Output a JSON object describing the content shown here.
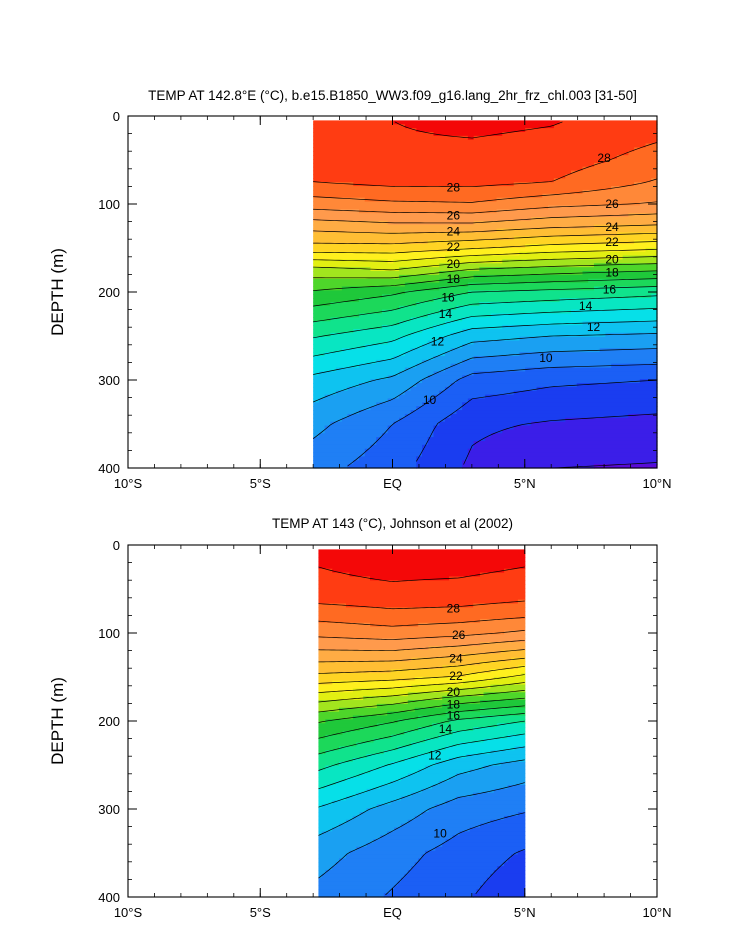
{
  "chart_data": [
    {
      "type": "heatmap",
      "subtype": "filled-contour",
      "title": "TEMP AT 142.8°E (°C), b.e15.B1850_WW3.f09_g16.lang_2hr_frz_chl.003 [31-50]",
      "ylabel": "DEPTH (m)",
      "xlabel": "",
      "xlim": [
        -10,
        10
      ],
      "ylim": [
        400,
        0
      ],
      "y_reversed": true,
      "x_tick_values": [
        -10,
        -5,
        0,
        5,
        10
      ],
      "x_tick_labels": [
        "10°S",
        "5°S",
        "EQ",
        "5°N",
        "10°N"
      ],
      "y_tick_values": [
        0,
        100,
        200,
        300,
        400
      ],
      "y_tick_labels": [
        "0",
        "100",
        "200",
        "300",
        "400"
      ],
      "data_extent_lat": [
        -3,
        10
      ],
      "data_extent_depth": [
        5,
        400
      ],
      "contour_interval": 1,
      "contour_levels": [
        7,
        8,
        9,
        10,
        11,
        12,
        13,
        14,
        15,
        16,
        17,
        18,
        19,
        20,
        21,
        22,
        23,
        24,
        25,
        26,
        27,
        28,
        29
      ],
      "labeled_contours": [
        {
          "level": 28,
          "lat": 8.0,
          "depth": 48,
          "text": "28"
        },
        {
          "level": 28,
          "lat": 2.3,
          "depth": 81,
          "text": "28"
        },
        {
          "level": 26,
          "lat": 2.3,
          "depth": 113,
          "text": "26"
        },
        {
          "level": 26,
          "lat": 8.3,
          "depth": 100,
          "text": "26"
        },
        {
          "level": 24,
          "lat": 2.3,
          "depth": 131,
          "text": "24"
        },
        {
          "level": 24,
          "lat": 8.3,
          "depth": 126,
          "text": "24"
        },
        {
          "level": 22,
          "lat": 2.3,
          "depth": 149,
          "text": "22"
        },
        {
          "level": 22,
          "lat": 8.3,
          "depth": 143,
          "text": "22"
        },
        {
          "level": 20,
          "lat": 2.3,
          "depth": 168,
          "text": "20"
        },
        {
          "level": 20,
          "lat": 8.3,
          "depth": 163,
          "text": "20"
        },
        {
          "level": 18,
          "lat": 2.3,
          "depth": 185,
          "text": "18"
        },
        {
          "level": 18,
          "lat": 8.3,
          "depth": 178,
          "text": "18"
        },
        {
          "level": 16,
          "lat": 2.1,
          "depth": 206,
          "text": "16"
        },
        {
          "level": 16,
          "lat": 8.2,
          "depth": 197,
          "text": "16"
        },
        {
          "level": 14,
          "lat": 2.0,
          "depth": 225,
          "text": "14"
        },
        {
          "level": 14,
          "lat": 7.3,
          "depth": 216,
          "text": "14"
        },
        {
          "level": 12,
          "lat": 1.7,
          "depth": 256,
          "text": "12"
        },
        {
          "level": 12,
          "lat": 7.6,
          "depth": 240,
          "text": "12"
        },
        {
          "level": 10,
          "lat": 1.4,
          "depth": 323,
          "text": "10"
        },
        {
          "level": 10,
          "lat": 5.8,
          "depth": 275,
          "text": "10"
        }
      ],
      "rows": [
        {
          "depth": 5,
          "lat": [
            -3,
            0,
            3,
            6,
            10
          ],
          "temp": [
            28.9,
            29.0,
            29.3,
            29.1,
            28.4
          ]
        },
        {
          "depth": 25,
          "lat": [
            -3,
            0,
            3,
            6,
            10
          ],
          "temp": [
            28.8,
            28.9,
            29.0,
            28.8,
            28.1
          ]
        },
        {
          "depth": 50,
          "lat": [
            -3,
            0,
            3,
            6,
            10
          ],
          "temp": [
            28.6,
            28.7,
            28.8,
            28.5,
            27.6
          ]
        },
        {
          "depth": 75,
          "lat": [
            -3,
            0,
            3,
            6,
            10
          ],
          "temp": [
            28.0,
            28.3,
            28.3,
            28.0,
            26.9
          ]
        },
        {
          "depth": 100,
          "lat": [
            -3,
            0,
            3,
            6,
            10
          ],
          "temp": [
            26.5,
            26.8,
            26.9,
            26.3,
            25.9
          ]
        },
        {
          "depth": 125,
          "lat": [
            -3,
            0,
            3,
            6,
            10
          ],
          "temp": [
            24.4,
            24.7,
            24.7,
            24.2,
            23.9
          ]
        },
        {
          "depth": 150,
          "lat": [
            -3,
            0,
            3,
            6,
            10
          ],
          "temp": [
            22.6,
            22.6,
            22.1,
            21.6,
            21.2
          ]
        },
        {
          "depth": 175,
          "lat": [
            -3,
            0,
            3,
            6,
            10
          ],
          "temp": [
            19.6,
            20.0,
            18.9,
            18.5,
            18.1
          ]
        },
        {
          "depth": 200,
          "lat": [
            -3,
            0,
            3,
            6,
            10
          ],
          "temp": [
            17.9,
            17.2,
            16.0,
            15.7,
            15.3
          ]
        },
        {
          "depth": 250,
          "lat": [
            -3,
            0,
            3,
            6,
            10
          ],
          "temp": [
            15.1,
            14.3,
            12.4,
            12.0,
            11.8
          ]
        },
        {
          "depth": 300,
          "lat": [
            -3,
            0,
            3,
            6,
            10
          ],
          "temp": [
            12.7,
            11.8,
            9.6,
            9.2,
            9.0
          ]
        },
        {
          "depth": 350,
          "lat": [
            -3,
            0,
            3,
            6,
            10
          ],
          "temp": [
            11.3,
            10.0,
            8.2,
            7.9,
            7.7
          ]
        },
        {
          "depth": 400,
          "lat": [
            -3,
            0,
            3,
            6,
            10
          ],
          "temp": [
            10.4,
            9.4,
            7.8,
            7.0,
            6.9
          ]
        }
      ]
    },
    {
      "type": "heatmap",
      "subtype": "filled-contour",
      "title": "TEMP AT 143 (°C), Johnson et al (2002)",
      "ylabel": "DEPTH (m)",
      "xlabel": "",
      "xlim": [
        -10,
        10
      ],
      "ylim": [
        400,
        0
      ],
      "y_reversed": true,
      "x_tick_values": [
        -10,
        -5,
        0,
        5,
        10
      ],
      "x_tick_labels": [
        "10°S",
        "5°S",
        "EQ",
        "5°N",
        "10°N"
      ],
      "y_tick_values": [
        0,
        100,
        200,
        300,
        400
      ],
      "y_tick_labels": [
        "0",
        "100",
        "200",
        "300",
        "400"
      ],
      "data_extent_lat": [
        -2.8,
        5
      ],
      "data_extent_depth": [
        5,
        400
      ],
      "contour_interval": 1,
      "contour_levels": [
        8,
        9,
        10,
        11,
        12,
        13,
        14,
        15,
        16,
        17,
        18,
        19,
        20,
        21,
        22,
        23,
        24,
        25,
        26,
        27,
        28,
        29
      ],
      "labeled_contours": [
        {
          "level": 28,
          "lat": 2.3,
          "depth": 72,
          "text": "28"
        },
        {
          "level": 26,
          "lat": 2.5,
          "depth": 102,
          "text": "26"
        },
        {
          "level": 24,
          "lat": 2.4,
          "depth": 129,
          "text": "24"
        },
        {
          "level": 22,
          "lat": 2.4,
          "depth": 149,
          "text": "22"
        },
        {
          "level": 20,
          "lat": 2.3,
          "depth": 167,
          "text": "20"
        },
        {
          "level": 18,
          "lat": 2.3,
          "depth": 181,
          "text": "18"
        },
        {
          "level": 16,
          "lat": 2.3,
          "depth": 194,
          "text": "16"
        },
        {
          "level": 14,
          "lat": 2.0,
          "depth": 209,
          "text": "14"
        },
        {
          "level": 12,
          "lat": 1.6,
          "depth": 239,
          "text": "12"
        },
        {
          "level": 10,
          "lat": 1.8,
          "depth": 328,
          "text": "10"
        }
      ],
      "rows": [
        {
          "depth": 5,
          "lat": [
            -2.8,
            0,
            2.5,
            5
          ],
          "temp": [
            29.1,
            29.3,
            29.4,
            29.2
          ]
        },
        {
          "depth": 25,
          "lat": [
            -2.8,
            0,
            2.5,
            5
          ],
          "temp": [
            29.0,
            29.2,
            29.2,
            29.0
          ]
        },
        {
          "depth": 50,
          "lat": [
            -2.8,
            0,
            2.5,
            5
          ],
          "temp": [
            28.8,
            28.9,
            28.8,
            28.6
          ]
        },
        {
          "depth": 75,
          "lat": [
            -2.8,
            0,
            2.5,
            5
          ],
          "temp": [
            27.6,
            27.9,
            27.8,
            27.5
          ]
        },
        {
          "depth": 100,
          "lat": [
            -2.8,
            0,
            2.5,
            5
          ],
          "temp": [
            26.3,
            26.6,
            26.3,
            25.8
          ]
        },
        {
          "depth": 125,
          "lat": [
            -2.8,
            0,
            2.5,
            5
          ],
          "temp": [
            24.6,
            24.6,
            24.1,
            23.4
          ]
        },
        {
          "depth": 150,
          "lat": [
            -2.8,
            0,
            2.5,
            5
          ],
          "temp": [
            22.7,
            22.4,
            21.9,
            20.7
          ]
        },
        {
          "depth": 175,
          "lat": [
            -2.8,
            0,
            2.5,
            5
          ],
          "temp": [
            20.3,
            19.6,
            18.6,
            17.9
          ]
        },
        {
          "depth": 200,
          "lat": [
            -2.8,
            0,
            2.5,
            5
          ],
          "temp": [
            18.1,
            17.1,
            15.8,
            15.0
          ]
        },
        {
          "depth": 250,
          "lat": [
            -2.8,
            0,
            2.5,
            5
          ],
          "temp": [
            15.3,
            13.9,
            12.4,
            11.6
          ]
        },
        {
          "depth": 300,
          "lat": [
            -2.8,
            0,
            2.5,
            5
          ],
          "temp": [
            12.9,
            11.6,
            10.5,
            10.1
          ]
        },
        {
          "depth": 350,
          "lat": [
            -2.8,
            0,
            2.5,
            5
          ],
          "temp": [
            11.4,
            10.4,
            9.6,
            8.9
          ]
        },
        {
          "depth": 400,
          "lat": [
            -2.8,
            0,
            2.5,
            5
          ],
          "temp": [
            10.7,
            9.9,
            9.2,
            8.3
          ]
        }
      ]
    }
  ]
}
